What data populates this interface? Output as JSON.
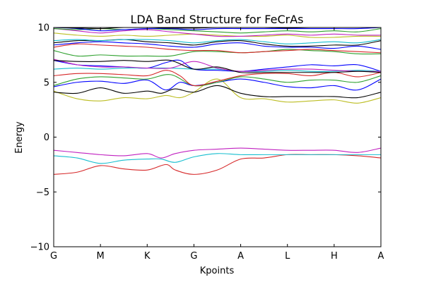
{
  "chart_data": {
    "type": "line",
    "title": "LDA Band Structure for FeCrAs",
    "xlabel": "Kpoints",
    "ylabel": "Energy",
    "xlim": [
      0,
      7
    ],
    "ylim": [
      -10,
      10
    ],
    "xticks": [
      {
        "x": 0,
        "label": "G"
      },
      {
        "x": 1,
        "label": "M"
      },
      {
        "x": 2,
        "label": "K"
      },
      {
        "x": 3,
        "label": "G"
      },
      {
        "x": 4,
        "label": "A"
      },
      {
        "x": 5,
        "label": "L"
      },
      {
        "x": 6,
        "label": "H"
      },
      {
        "x": 7,
        "label": "A"
      }
    ],
    "yticks": [
      {
        "y": -10,
        "label": "−10"
      },
      {
        "y": -5,
        "label": "−5"
      },
      {
        "y": 0,
        "label": "0"
      },
      {
        "y": 5,
        "label": "5"
      },
      {
        "y": 10,
        "label": "10"
      }
    ],
    "grid": false,
    "legend": "none",
    "series": [
      {
        "color": "#d62728",
        "x": [
          0,
          0.5,
          1,
          1.5,
          2,
          2.4,
          2.6,
          3,
          3.5,
          4,
          4.5,
          5,
          5.5,
          6,
          6.5,
          7
        ],
        "y": [
          -3.4,
          -3.2,
          -2.6,
          -2.9,
          -3.0,
          -2.5,
          -3.0,
          -3.4,
          -3.0,
          -2.0,
          -1.9,
          -1.6,
          -1.6,
          -1.6,
          -1.7,
          -1.9
        ]
      },
      {
        "color": "#17becf",
        "x": [
          0,
          0.5,
          1,
          1.5,
          2,
          2.3,
          2.6,
          3,
          3.5,
          4,
          4.5,
          5,
          5.5,
          6,
          6.5,
          7
        ],
        "y": [
          -1.7,
          -1.9,
          -2.4,
          -2.1,
          -2.0,
          -2.0,
          -2.3,
          -1.8,
          -1.5,
          -1.6,
          -1.6,
          -1.6,
          -1.6,
          -1.6,
          -1.6,
          -1.6
        ]
      },
      {
        "color": "#c020c0",
        "x": [
          0,
          0.5,
          1,
          1.5,
          2,
          2.3,
          2.6,
          3,
          3.5,
          4,
          4.5,
          5,
          5.5,
          6,
          6.5,
          7
        ],
        "y": [
          -1.2,
          -1.4,
          -1.6,
          -1.7,
          -1.5,
          -1.9,
          -1.5,
          -1.2,
          -1.1,
          -1.0,
          -1.1,
          -1.2,
          -1.2,
          -1.2,
          -1.4,
          -1.0
        ]
      },
      {
        "color": "#bcbd22",
        "x": [
          0,
          0.5,
          1,
          1.5,
          2,
          2.4,
          2.7,
          3,
          3.5,
          4,
          4.5,
          5,
          5.5,
          6,
          6.5,
          7
        ],
        "y": [
          4.2,
          3.5,
          3.3,
          3.6,
          3.5,
          3.8,
          3.6,
          4.1,
          5.3,
          3.6,
          3.5,
          3.2,
          3.3,
          3.4,
          3.1,
          3.6
        ]
      },
      {
        "color": "#000000",
        "x": [
          0,
          0.5,
          1,
          1.5,
          2,
          2.3,
          2.6,
          3,
          3.5,
          4,
          4.5,
          5,
          5.5,
          6,
          6.5,
          7
        ],
        "y": [
          4.1,
          4.0,
          4.5,
          4.0,
          4.2,
          4.0,
          4.4,
          4.1,
          4.7,
          4.0,
          3.7,
          3.7,
          3.7,
          3.7,
          3.6,
          4.1
        ]
      },
      {
        "color": "#0000ff",
        "x": [
          0,
          0.5,
          1,
          1.5,
          2,
          2.4,
          2.7,
          3,
          3.5,
          4,
          4.5,
          5,
          5.5,
          6,
          6.5,
          7
        ],
        "y": [
          4.6,
          5.0,
          5.1,
          4.9,
          5.2,
          4.3,
          5.0,
          4.7,
          5.0,
          5.3,
          5.0,
          4.6,
          4.5,
          4.7,
          4.3,
          5.3
        ]
      },
      {
        "color": "#0000ff",
        "x": [
          0,
          0.5,
          1,
          1.5,
          2,
          2.4,
          2.7,
          3,
          3.5,
          4,
          4.5,
          5,
          5.5,
          6,
          6.5,
          7
        ],
        "y": [
          7.0,
          6.6,
          6.5,
          6.4,
          6.3,
          6.8,
          7.0,
          6.2,
          6.1,
          6.0,
          6.2,
          6.4,
          6.6,
          6.5,
          6.6,
          6.0
        ]
      },
      {
        "color": "#2ca02c",
        "x": [
          0,
          0.5,
          1,
          1.5,
          2,
          2.5,
          3,
          3.5,
          4,
          4.5,
          5,
          5.5,
          6,
          6.5,
          7
        ],
        "y": [
          4.7,
          5.3,
          5.5,
          5.4,
          5.3,
          5.7,
          4.7,
          5.0,
          5.5,
          5.3,
          5.0,
          5.2,
          5.2,
          5.0,
          5.6
        ]
      },
      {
        "color": "#d62728",
        "x": [
          0,
          0.5,
          1,
          1.5,
          2,
          2.4,
          2.7,
          3,
          3.5,
          4,
          4.5,
          5,
          5.5,
          6,
          6.5,
          7
        ],
        "y": [
          5.6,
          5.8,
          5.8,
          5.7,
          5.6,
          6.1,
          5.6,
          4.7,
          5.1,
          5.6,
          5.8,
          5.8,
          5.6,
          5.9,
          5.5,
          5.9
        ]
      },
      {
        "color": "#17becf",
        "x": [
          0,
          0.5,
          1,
          1.5,
          2,
          2.5,
          3,
          3.5,
          4,
          4.5,
          5,
          5.5,
          6,
          6.5,
          7
        ],
        "y": [
          6.2,
          6.3,
          6.2,
          6.3,
          6.3,
          6.3,
          6.2,
          6.2,
          6.0,
          6.0,
          6.1,
          6.0,
          6.0,
          6.1,
          6.0
        ]
      },
      {
        "color": "#c020c0",
        "x": [
          0,
          0.5,
          1,
          1.5,
          2,
          2.5,
          3,
          3.5,
          4,
          4.5,
          5,
          5.5,
          6,
          6.5,
          7
        ],
        "y": [
          7.1,
          6.6,
          6.4,
          6.4,
          6.3,
          6.3,
          6.9,
          6.3,
          6.0,
          6.1,
          6.2,
          6.2,
          6.1,
          6.0,
          6.0
        ]
      },
      {
        "color": "#000000",
        "x": [
          0,
          0.5,
          1,
          1.5,
          2,
          2.5,
          3,
          3.5,
          4,
          4.5,
          5,
          5.5,
          6,
          6.5,
          7
        ],
        "y": [
          7.0,
          6.9,
          6.9,
          7.0,
          6.9,
          7.0,
          6.2,
          6.4,
          5.9,
          5.9,
          5.9,
          5.9,
          5.9,
          6.0,
          5.9
        ]
      },
      {
        "color": "#2ca02c",
        "x": [
          0,
          0.5,
          1,
          1.5,
          2,
          2.5,
          3,
          3.5,
          4,
          4.5,
          5,
          5.5,
          6,
          6.5,
          7
        ],
        "y": [
          7.9,
          7.4,
          7.5,
          7.4,
          7.4,
          7.4,
          7.8,
          7.8,
          7.7,
          7.8,
          8.0,
          7.9,
          7.8,
          7.6,
          7.6
        ]
      },
      {
        "color": "#d62728",
        "x": [
          0,
          0.5,
          1,
          1.5,
          2,
          2.5,
          3,
          3.5,
          4,
          4.5,
          5,
          5.5,
          6,
          6.5,
          7
        ],
        "y": [
          8.2,
          8.5,
          8.4,
          8.3,
          8.2,
          8.0,
          7.9,
          7.9,
          7.7,
          7.8,
          7.9,
          8.0,
          7.9,
          7.8,
          7.7
        ]
      },
      {
        "color": "#0000ff",
        "x": [
          0,
          0.5,
          1,
          1.5,
          2,
          2.5,
          3,
          3.5,
          4,
          4.5,
          5,
          5.5,
          6,
          6.5,
          7
        ],
        "y": [
          8.4,
          8.6,
          8.7,
          8.6,
          8.5,
          8.3,
          8.2,
          8.5,
          8.6,
          8.3,
          8.2,
          8.2,
          8.1,
          8.3,
          8.0
        ]
      },
      {
        "color": "#000000",
        "x": [
          0,
          0.5,
          1,
          1.5,
          2,
          2.5,
          3,
          3.5,
          4,
          4.5,
          5,
          5.5,
          6,
          6.5,
          7
        ],
        "y": [
          8.6,
          8.8,
          8.8,
          8.9,
          8.7,
          8.6,
          8.4,
          8.7,
          8.8,
          8.5,
          8.3,
          8.3,
          8.4,
          8.4,
          8.8
        ]
      },
      {
        "color": "#17becf",
        "x": [
          0,
          0.5,
          1,
          1.5,
          2,
          2.5,
          3,
          3.5,
          4,
          4.5,
          5,
          5.5,
          6,
          6.5,
          7
        ],
        "y": [
          8.8,
          8.9,
          8.8,
          8.9,
          8.9,
          8.8,
          8.6,
          8.8,
          8.9,
          8.7,
          8.5,
          8.6,
          8.7,
          8.6,
          8.9
        ]
      },
      {
        "color": "#bcbd22",
        "x": [
          0,
          0.5,
          1,
          1.5,
          2,
          2.5,
          3,
          3.5,
          4,
          4.5,
          5,
          5.5,
          6,
          6.5,
          7
        ],
        "y": [
          9.5,
          9.3,
          9.2,
          9.3,
          9.2,
          9.3,
          9.4,
          9.3,
          9.2,
          9.2,
          9.3,
          9.1,
          9.1,
          9.2,
          9.2
        ]
      },
      {
        "color": "#c020c0",
        "x": [
          0,
          0.5,
          1,
          1.5,
          2,
          2.5,
          3,
          3.5,
          4,
          4.5,
          5,
          5.5,
          6,
          6.5,
          7
        ],
        "y": [
          9.9,
          9.7,
          9.5,
          9.7,
          9.8,
          9.6,
          9.4,
          9.2,
          9.2,
          9.3,
          9.4,
          9.3,
          9.4,
          9.3,
          9.3
        ]
      },
      {
        "color": "#2ca02c",
        "x": [
          0,
          0.5,
          1,
          1.5,
          2,
          2.5,
          3,
          3.5,
          4,
          4.5,
          5,
          5.5,
          6,
          6.5,
          7
        ],
        "y": [
          9.9,
          9.8,
          9.9,
          9.8,
          9.9,
          9.8,
          9.7,
          9.6,
          9.5,
          9.6,
          9.7,
          9.6,
          9.7,
          9.6,
          9.9
        ]
      },
      {
        "color": "#0000ff",
        "x": [
          0,
          0.5,
          1,
          1.5,
          2,
          2.5,
          3,
          3.5,
          4,
          4.5,
          5,
          5.5,
          6,
          6.5,
          7
        ],
        "y": [
          10.0,
          9.9,
          9.7,
          9.8,
          9.9,
          9.9,
          9.8,
          9.9,
          9.9,
          9.9,
          9.9,
          9.9,
          9.9,
          9.9,
          10.0
        ]
      },
      {
        "color": "#000000",
        "x": [
          0,
          0.5,
          1,
          1.5,
          2,
          2.5,
          3,
          3.5,
          4,
          4.5,
          5,
          5.5,
          6,
          6.5,
          7
        ],
        "y": [
          10.0,
          9.95,
          9.9,
          10.0,
          10.0,
          9.95,
          9.95,
          10.0,
          10.0,
          10.0,
          9.95,
          10.0,
          10.0,
          10.0,
          10.0
        ]
      }
    ]
  }
}
